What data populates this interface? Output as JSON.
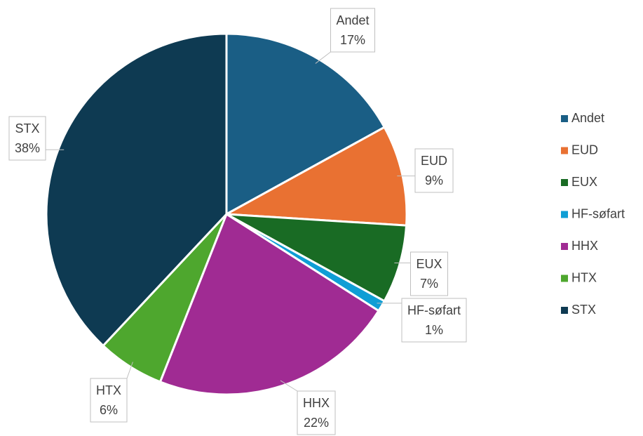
{
  "chart_data": {
    "type": "pie",
    "categories": [
      "Andet",
      "EUD",
      "EUX",
      "HF-søfart",
      "HHX",
      "HTX",
      "STX"
    ],
    "values": [
      17,
      9,
      7,
      1,
      22,
      6,
      38
    ],
    "value_labels": [
      "17%",
      "9%",
      "7%",
      "1%",
      "22%",
      "6%",
      "38%"
    ],
    "colors": [
      "#1a5e85",
      "#e97132",
      "#196b24",
      "#0f9ed5",
      "#a02b93",
      "#4ea72e",
      "#0e3a52"
    ],
    "legend": "right"
  }
}
